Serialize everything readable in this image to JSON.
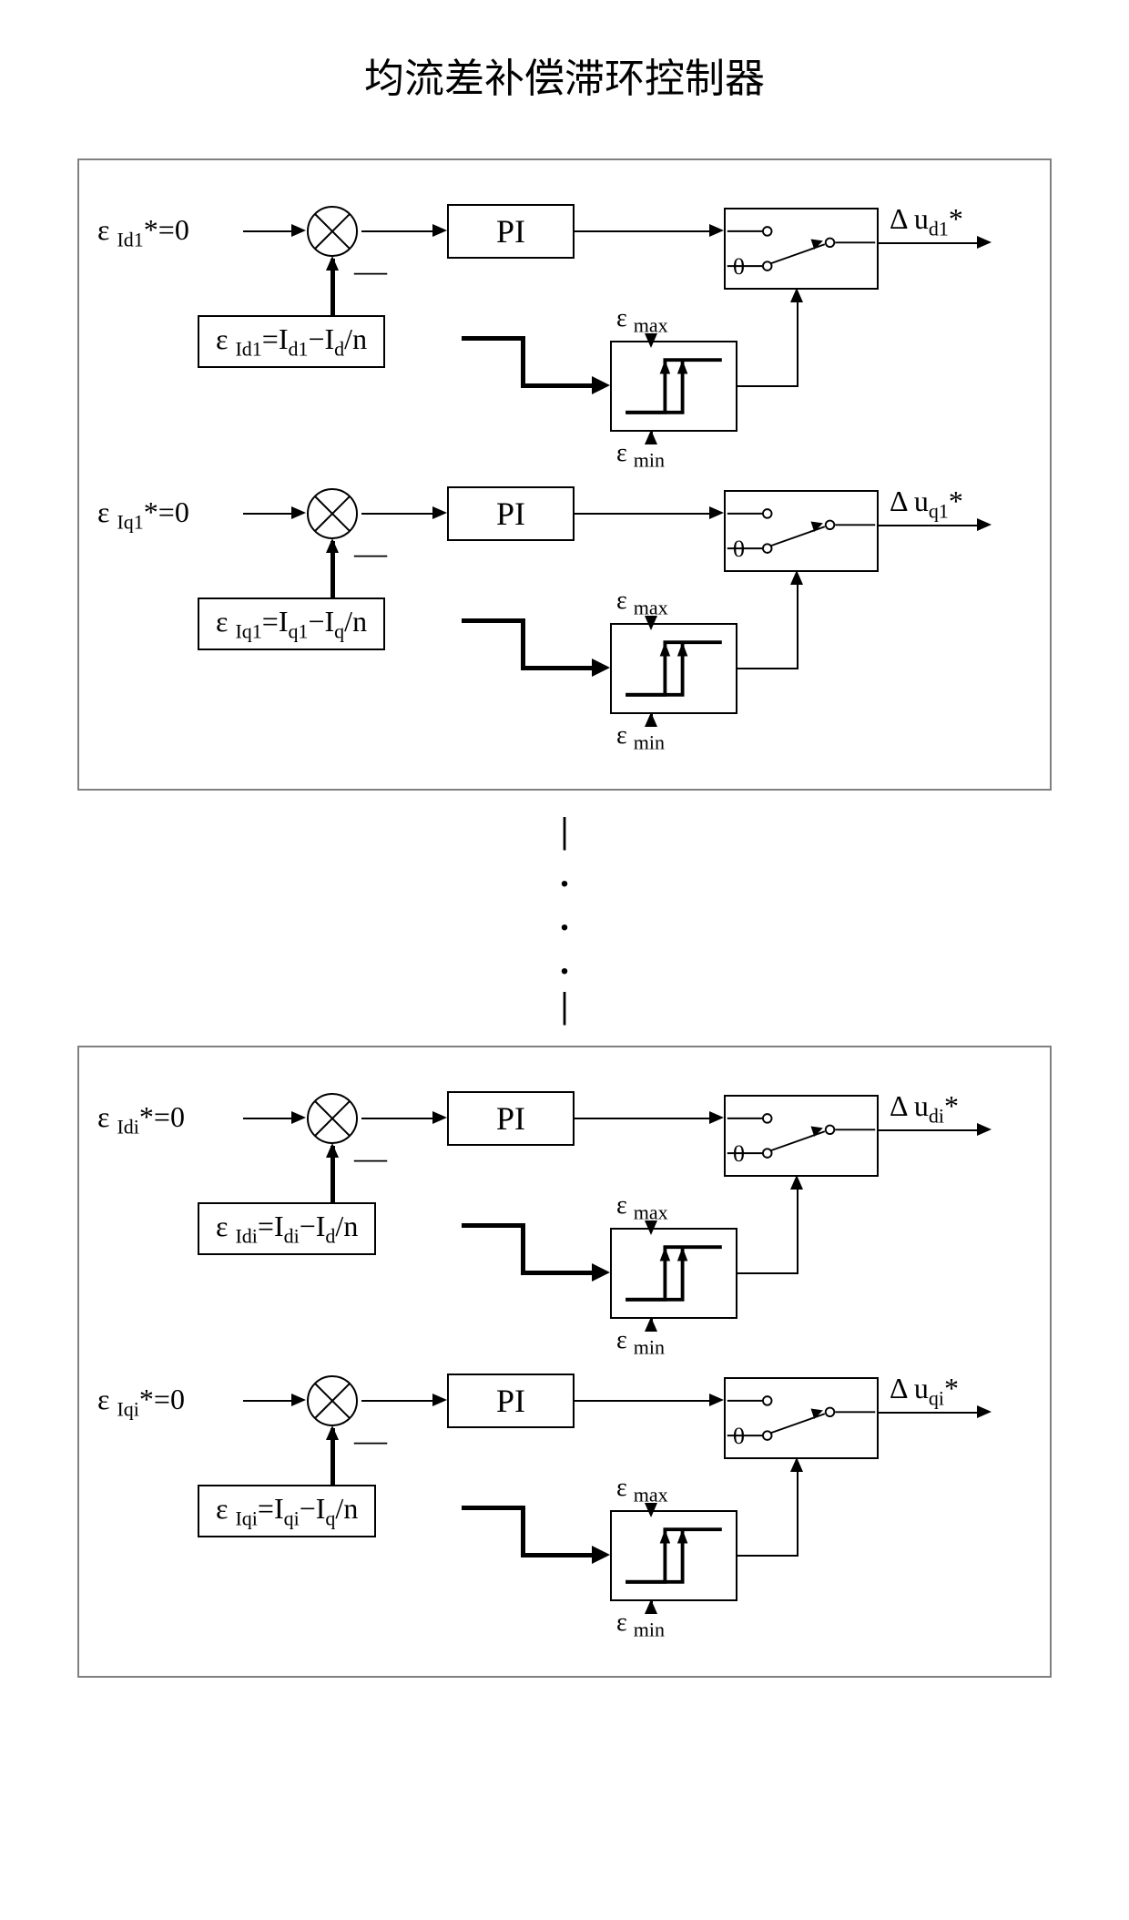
{
  "type": "block-diagram",
  "title": "均流差补偿滞环控制器",
  "title_fontsize": 44,
  "colors": {
    "background": "#ffffff",
    "border": "#808080",
    "line": "#000000",
    "text": "#000000"
  },
  "line_width_thin": 2,
  "line_width_thick": 5,
  "blocks": [
    "1",
    "i"
  ],
  "channels": [
    "d",
    "q"
  ],
  "pi_label": "PI",
  "switch_zero": "0",
  "hyst_max": "max",
  "hyst_min": "min",
  "epsilon": "ε",
  "delta": "Δ",
  "ref_val": "0",
  "minus": "—",
  "eq_pattern": {
    "lhs_prefix": "I",
    "mid": "=I",
    "suffix": "−I",
    "tail": "/n"
  },
  "rows": [
    {
      "axis": "d",
      "idx": "1",
      "ref": "Id1",
      "eq_sub1": "Id1",
      "eq_sub2": "d1",
      "eq_sub3": "d",
      "out_sub": "d1"
    },
    {
      "axis": "q",
      "idx": "1",
      "ref": "Iq1",
      "eq_sub1": "Iq1",
      "eq_sub2": "q1",
      "eq_sub3": "q",
      "out_sub": "q1"
    },
    {
      "axis": "d",
      "idx": "i",
      "ref": "Idi",
      "eq_sub1": "Idi",
      "eq_sub2": "di",
      "eq_sub3": "d",
      "out_sub": "di"
    },
    {
      "axis": "q",
      "idx": "i",
      "ref": "Iqi",
      "eq_sub1": "Iqi",
      "eq_sub2": "qi",
      "eq_sub3": "q",
      "out_sub": "qi"
    }
  ]
}
